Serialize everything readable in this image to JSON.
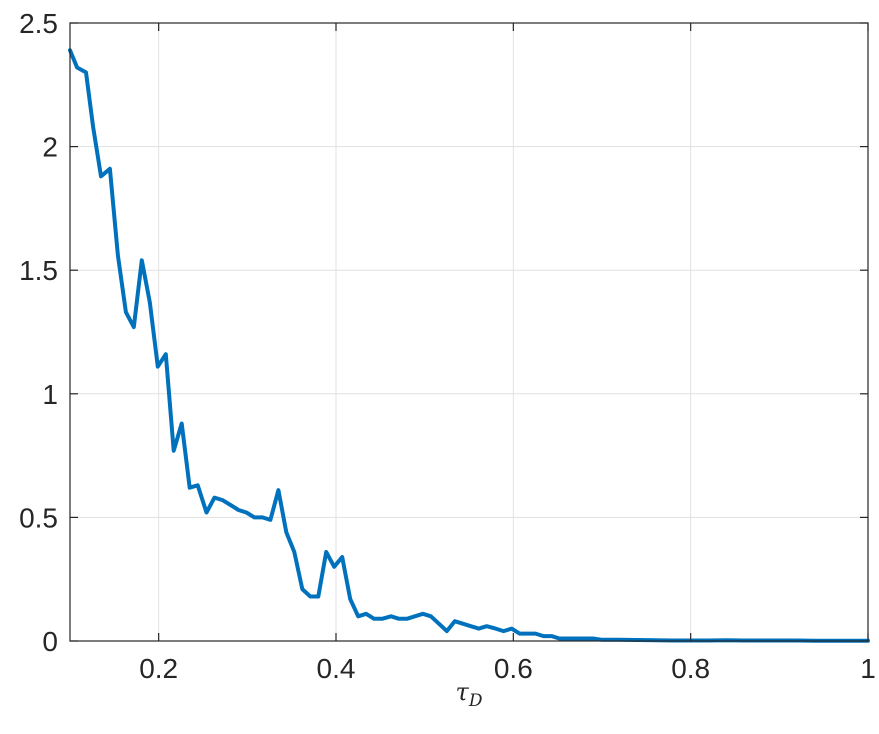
{
  "chart_data": {
    "type": "line",
    "title": "",
    "xlabel": "τ",
    "xlabel_subscript": "D",
    "ylabel": "",
    "xlim": [
      0.1,
      1
    ],
    "ylim": [
      0,
      2.5
    ],
    "x_ticks": [
      0.2,
      0.4,
      0.6,
      0.8,
      1
    ],
    "x_tick_labels": [
      "0.2",
      "0.4",
      "0.6",
      "0.8",
      "1"
    ],
    "y_ticks": [
      0,
      0.5,
      1,
      1.5,
      2,
      2.5
    ],
    "y_tick_labels": [
      "0",
      "0.5",
      "1",
      "1.5",
      "2",
      "2.5"
    ],
    "grid": true,
    "legend": false,
    "series": [
      {
        "color": "#0072bd",
        "x": [
          0.1,
          0.108,
          0.118,
          0.126,
          0.135,
          0.145,
          0.154,
          0.163,
          0.172,
          0.181,
          0.19,
          0.199,
          0.208,
          0.217,
          0.226,
          0.235,
          0.244,
          0.254,
          0.263,
          0.272,
          0.281,
          0.29,
          0.299,
          0.308,
          0.317,
          0.326,
          0.335,
          0.344,
          0.353,
          0.362,
          0.371,
          0.38,
          0.389,
          0.398,
          0.407,
          0.416,
          0.425,
          0.434,
          0.443,
          0.452,
          0.462,
          0.471,
          0.48,
          0.489,
          0.498,
          0.507,
          0.516,
          0.525,
          0.534,
          0.543,
          0.552,
          0.561,
          0.57,
          0.58,
          0.589,
          0.598,
          0.607,
          0.616,
          0.625,
          0.634,
          0.643,
          0.652,
          0.661,
          0.67,
          0.68,
          0.69,
          0.7,
          0.72,
          0.74,
          0.76,
          0.78,
          0.8,
          0.82,
          0.84,
          0.86,
          0.88,
          0.9,
          0.92,
          0.94,
          0.96,
          0.98,
          1.0
        ],
        "y": [
          2.39,
          2.32,
          2.3,
          2.08,
          1.88,
          1.91,
          1.56,
          1.33,
          1.27,
          1.54,
          1.37,
          1.11,
          1.16,
          0.77,
          0.88,
          0.62,
          0.63,
          0.52,
          0.58,
          0.57,
          0.55,
          0.53,
          0.52,
          0.5,
          0.5,
          0.49,
          0.61,
          0.44,
          0.36,
          0.21,
          0.18,
          0.18,
          0.36,
          0.3,
          0.34,
          0.17,
          0.1,
          0.11,
          0.09,
          0.09,
          0.1,
          0.09,
          0.09,
          0.1,
          0.11,
          0.1,
          0.07,
          0.04,
          0.08,
          0.07,
          0.06,
          0.05,
          0.06,
          0.05,
          0.04,
          0.05,
          0.03,
          0.03,
          0.03,
          0.02,
          0.02,
          0.01,
          0.01,
          0.01,
          0.01,
          0.01,
          0.005,
          0.005,
          0.004,
          0.003,
          0.002,
          0.002,
          0.002,
          0.003,
          0.002,
          0.002,
          0.002,
          0.002,
          0.001,
          0.001,
          0.001,
          0.001
        ]
      }
    ]
  }
}
